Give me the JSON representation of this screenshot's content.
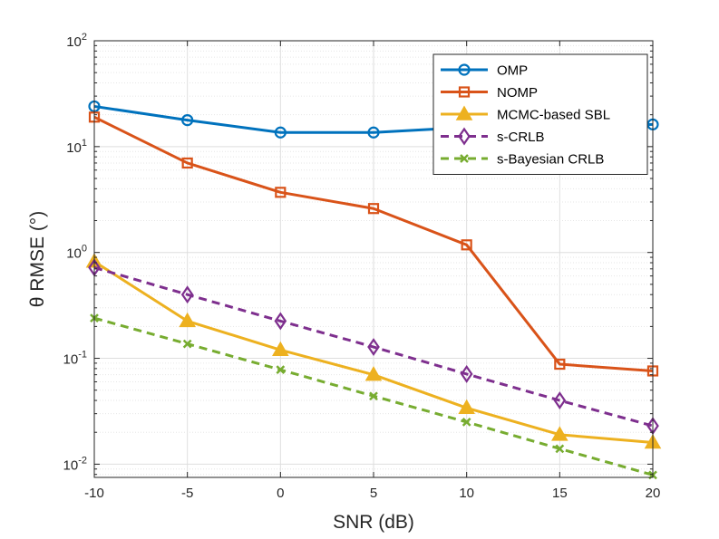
{
  "chart_data": {
    "type": "line",
    "xlabel": "SNR (dB)",
    "ylabel": "θ RMSE (°)",
    "yscale": "log",
    "xlim": [
      -10,
      20
    ],
    "ylim": [
      0.0075,
      100
    ],
    "xticks": [
      -10,
      -5,
      0,
      5,
      10,
      15,
      20
    ],
    "yticks": [
      {
        "value": 0.01,
        "base": "10",
        "exp": "-2"
      },
      {
        "value": 0.1,
        "base": "10",
        "exp": "-1"
      },
      {
        "value": 1,
        "base": "10",
        "exp": "0"
      },
      {
        "value": 10,
        "base": "10",
        "exp": "1"
      },
      {
        "value": 100,
        "base": "10",
        "exp": "2"
      }
    ],
    "grid": true,
    "legend_position": "top-right",
    "x": [
      -10,
      -5,
      0,
      5,
      10,
      15,
      20
    ],
    "series": [
      {
        "name": "OMP",
        "color": "#0072BD",
        "marker": "circle",
        "dash": "solid",
        "values": [
          24,
          17.8,
          13.6,
          13.6,
          15.2,
          15.5,
          16.2
        ]
      },
      {
        "name": "NOMP",
        "color": "#D95319",
        "marker": "square",
        "dash": "solid",
        "values": [
          19,
          7.0,
          3.7,
          2.6,
          1.18,
          0.088,
          0.076
        ]
      },
      {
        "name": "MCMC-based SBL",
        "color": "#EDB120",
        "marker": "triangle",
        "dash": "solid",
        "values": [
          0.82,
          0.225,
          0.12,
          0.07,
          0.034,
          0.019,
          0.016
        ]
      },
      {
        "name": "s-CRLB",
        "color": "#7E2F8E",
        "marker": "diamond",
        "dash": "dashed",
        "values": [
          0.72,
          0.4,
          0.225,
          0.128,
          0.071,
          0.04,
          0.023
        ]
      },
      {
        "name": "s-Bayesian CRLB",
        "color": "#77AC30",
        "marker": "x",
        "dash": "dashed",
        "values": [
          0.24,
          0.137,
          0.078,
          0.044,
          0.025,
          0.014,
          0.0079
        ]
      }
    ]
  }
}
